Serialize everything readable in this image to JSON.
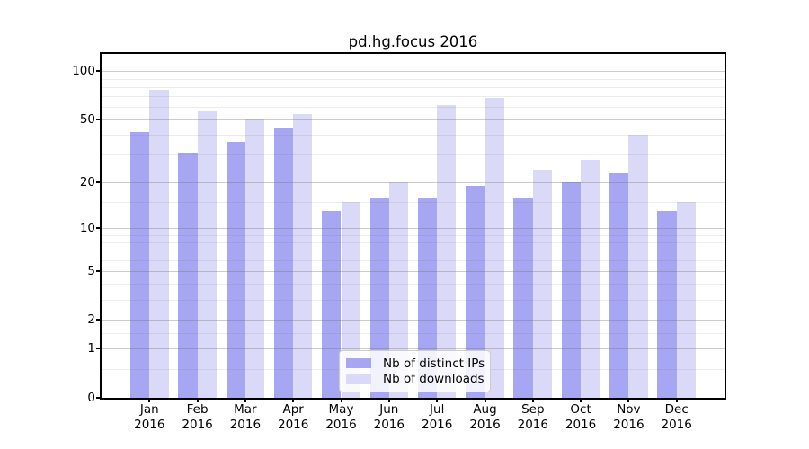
{
  "figure": {
    "title": "pd.hg.focus 2016"
  },
  "chart_data": {
    "type": "bar",
    "title": "pd.hg.focus 2016",
    "categories": [
      "Jan",
      "Feb",
      "Mar",
      "Apr",
      "May",
      "Jun",
      "Jul",
      "Aug",
      "Sep",
      "Oct",
      "Nov",
      "Dec"
    ],
    "category_year": "2016",
    "series": [
      {
        "name": "Nb of distinct IPs",
        "color": "#a6a6f2",
        "values": [
          42,
          31,
          36,
          44,
          13,
          16,
          16,
          19,
          16,
          20,
          23,
          13
        ]
      },
      {
        "name": "Nb of downloads",
        "color": "#dadaf8",
        "values": [
          77,
          56,
          50,
          54,
          15,
          20,
          62,
          68,
          24,
          28,
          40,
          15
        ]
      }
    ],
    "xlabel": "",
    "ylabel": "",
    "yscale": "log1p",
    "ylim": [
      0,
      128
    ],
    "y_ticks": [
      0,
      1,
      2,
      5,
      10,
      20,
      50,
      100
    ],
    "y_minor_gridlines": [
      0.5,
      1.5,
      3,
      4,
      6,
      7,
      8,
      9,
      15,
      30,
      40,
      60,
      70,
      80,
      90
    ],
    "grid": "horizontal",
    "legend_position": "bottom-center"
  }
}
